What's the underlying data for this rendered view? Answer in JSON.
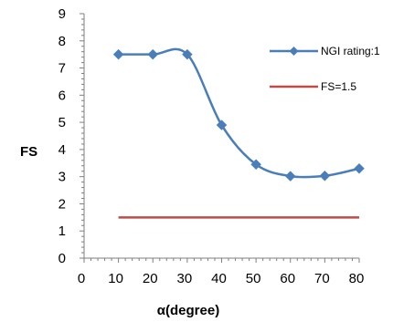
{
  "chart_data": {
    "type": "line",
    "title": "",
    "xlabel": "α(degree)",
    "ylabel": "FS",
    "xlim": [
      0,
      80
    ],
    "ylim": [
      0,
      9
    ],
    "xticks": [
      0,
      10,
      20,
      30,
      40,
      50,
      60,
      70,
      80
    ],
    "yticks": [
      0,
      1,
      2,
      3,
      4,
      5,
      6,
      7,
      8,
      9
    ],
    "grid": false,
    "legend_position": "top-right",
    "series": [
      {
        "name": "NGI rating:1",
        "x": [
          10,
          20,
          30,
          40,
          50,
          60,
          70,
          80
        ],
        "y": [
          7.5,
          7.5,
          7.5,
          4.9,
          3.45,
          3.02,
          3.03,
          3.3
        ],
        "color": "#4a7ebb",
        "marker": "diamond",
        "smooth": true
      },
      {
        "name": "FS=1.5",
        "x": [
          10,
          80
        ],
        "y": [
          1.5,
          1.5
        ],
        "color": "#be4b48",
        "marker": "none",
        "smooth": false
      }
    ]
  }
}
